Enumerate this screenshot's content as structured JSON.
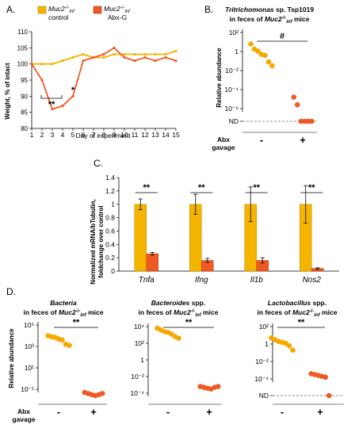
{
  "colors": {
    "yellow": "#F4B400",
    "orange": "#EE5A24",
    "dot_yellow": "#F7A800",
    "axis": "#000000"
  },
  "panels": {
    "A": "A.",
    "B": "B.",
    "C": "C.",
    "D": "D."
  },
  "chart_data": [
    {
      "id": "A",
      "type": "line",
      "title": "",
      "xlabel": "Day of experiment",
      "ylabel": "Weight, % of intact",
      "xlim": [
        1,
        15
      ],
      "ylim": [
        80,
        110
      ],
      "yticks": [
        80,
        85,
        90,
        95,
        100,
        105,
        110
      ],
      "x": [
        1,
        2,
        3,
        4,
        5,
        6,
        7,
        8,
        9,
        10,
        11,
        12,
        13,
        14,
        15
      ],
      "legend": {
        "control_main": "Muc2",
        "control_sup": "-/-",
        "control_sub": "inf",
        "control_line2": "control",
        "abx_main": "Muc2",
        "abx_sup": "-/-",
        "abx_sub": "inf",
        "abx_line2": "Abx-G"
      },
      "series": [
        {
          "name": "control",
          "color": "yellow",
          "values": [
            100,
            100,
            100,
            101,
            102,
            103,
            102,
            102,
            103,
            103,
            103,
            103,
            103,
            103,
            104
          ]
        },
        {
          "name": "Abx-G",
          "color": "orange",
          "values": [
            100,
            95,
            86,
            87,
            90,
            101,
            102,
            103,
            105,
            102,
            101,
            102,
            101,
            102,
            101
          ]
        }
      ],
      "annotations": {
        "star2": "**",
        "star1": "*"
      }
    },
    {
      "id": "B",
      "type": "scatter",
      "title_italic": "Tritrichomonas",
      "title_rest": " sp. Tsp1019",
      "title_line2_pre": "in feces of ",
      "title_line2_italic": "Muc2",
      "title_line2_sup": "-/-",
      "title_line2_sub": "inf",
      "title_line2_post": " mice",
      "ylabel": "Relative abundance",
      "yticks": [
        "10²",
        "1",
        "10⁻²",
        "10⁻⁴",
        "10⁻⁶",
        "ND"
      ],
      "yscale": "log",
      "groups": [
        {
          "name": "-",
          "color": "dot_yellow",
          "values_log10": [
            0.8,
            0.25,
            0.05,
            -0.3,
            -0.4,
            -1.1,
            -1.5
          ]
        },
        {
          "name": "+",
          "color": "orange",
          "values_log10": [
            -4.8,
            -5.6,
            "ND",
            "ND",
            "ND",
            "ND"
          ]
        }
      ],
      "xtitle_line1": "Abx",
      "xtitle_line2": "gavage",
      "significance": "#"
    },
    {
      "id": "C",
      "type": "bar",
      "ylabel_line1": "Normalized mRNA/bTubulin,",
      "ylabel_line2": "foldchange over control",
      "yticks": [
        "0",
        "0.2",
        "0.4",
        "0.6",
        "0.8",
        "1",
        "1.2",
        "1.4"
      ],
      "ylim": [
        0,
        1.4
      ],
      "categories": [
        "Tnfa",
        "Ifng",
        "Il1b",
        "Nos2"
      ],
      "series": [
        {
          "name": "control",
          "color": "yellow",
          "values": [
            1.0,
            1.0,
            1.0,
            1.0
          ],
          "errors": [
            0.08,
            0.15,
            0.26,
            0.28
          ]
        },
        {
          "name": "Abx-G",
          "color": "orange",
          "values": [
            0.26,
            0.16,
            0.16,
            0.04
          ],
          "errors": [
            0.02,
            0.03,
            0.04,
            0.01
          ]
        }
      ],
      "significance": "**"
    },
    {
      "id": "D1",
      "type": "scatter",
      "title_italic": "Bacteria",
      "title_rest": "",
      "title_line2_pre": "in feces of ",
      "title_line2_italic": "Muc2",
      "title_line2_sup": "-/-",
      "title_line2_sub": "inf",
      "title_line2_post": " mice",
      "ylabel": "Relative abundance",
      "yticks": [
        "10⁵",
        "10³",
        "10¹",
        "10⁻¹"
      ],
      "yscale": "log",
      "groups": [
        {
          "name": "-",
          "color": "dot_yellow",
          "values_log10": [
            4.0,
            3.9,
            3.85,
            3.7,
            3.6,
            3.2,
            3.1
          ]
        },
        {
          "name": "+",
          "color": "orange",
          "values_log10": [
            -1.3,
            -1.4,
            -1.5,
            -1.6,
            -1.5,
            -1.4
          ]
        }
      ],
      "xtitle_line1": "Abx",
      "xtitle_line2": "gavage",
      "significance": "**"
    },
    {
      "id": "D2",
      "type": "scatter",
      "title_italic": "Bacteroides",
      "title_rest": " spp.",
      "title_line2_pre": "in feces of ",
      "title_line2_italic": "Muc2",
      "title_line2_sup": "-/-",
      "title_line2_sub": "inf",
      "title_line2_post": " mice",
      "yticks": [
        "10⁴",
        "10²",
        "1",
        "10⁻²",
        "10⁻⁴"
      ],
      "yscale": "log",
      "groups": [
        {
          "name": "-",
          "color": "dot_yellow",
          "values_log10": [
            3.8,
            3.6,
            3.4,
            3.3,
            3.1,
            2.8,
            2.6
          ]
        },
        {
          "name": "+",
          "color": "orange",
          "values_log10": [
            -3.2,
            -3.3,
            -3.4,
            -3.5,
            -3.3,
            -3.2
          ]
        }
      ],
      "significance": "**"
    },
    {
      "id": "D3",
      "type": "scatter",
      "title_italic": "Lactobacillus",
      "title_rest": " spp.",
      "title_line2_pre": "in feces of ",
      "title_line2_italic": "Muc2",
      "title_line2_sup": "-/-",
      "title_line2_sub": "inf",
      "title_line2_post": " mice",
      "yticks": [
        "10²",
        "1",
        "10⁻²",
        "10⁻⁴",
        "ND"
      ],
      "yscale": "log",
      "groups": [
        {
          "name": "-",
          "color": "dot_yellow",
          "values_log10": [
            0.7,
            0.5,
            0.3,
            0.2,
            0.1,
            -0.2,
            -0.7
          ]
        },
        {
          "name": "+",
          "color": "orange",
          "values_log10": [
            -3.4,
            -3.5,
            -3.6,
            -3.7,
            -3.8,
            "ND"
          ]
        }
      ],
      "significance": "**"
    }
  ]
}
